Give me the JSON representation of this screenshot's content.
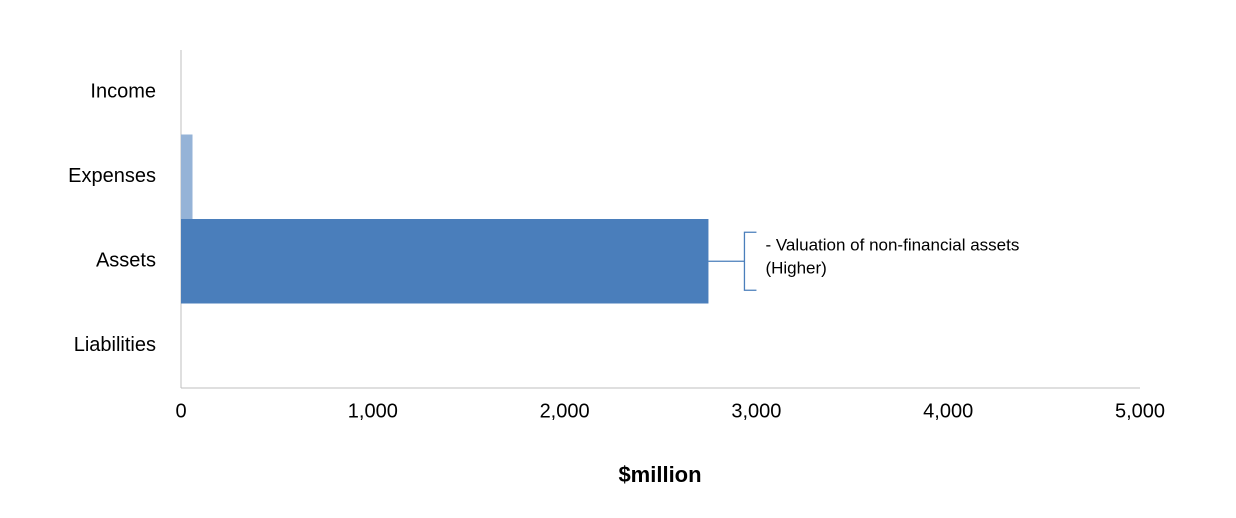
{
  "chart_data": {
    "type": "hbar",
    "categories": [
      "Income",
      "Expenses",
      "Assets",
      "Liabilities"
    ],
    "values": [
      0,
      60,
      2750,
      0
    ],
    "colors": [
      "#4a7ebb",
      "#95b3d7",
      "#4a7ebb",
      "#4a7ebb"
    ],
    "xlim": [
      0,
      5000
    ],
    "xticks": [
      0,
      {
        "value": 1000,
        "label": "1,000"
      },
      {
        "value": 2000,
        "label": "2,000"
      },
      {
        "value": 3000,
        "label": "3,000"
      },
      {
        "value": 4000,
        "label": "4,000"
      },
      {
        "value": 5000,
        "label": "5,000"
      }
    ],
    "xlabel": "$million",
    "grid": false,
    "annotation": {
      "category_index": 2,
      "lines": [
        "- Valuation of non-financial assets",
        "(Higher)"
      ]
    }
  }
}
